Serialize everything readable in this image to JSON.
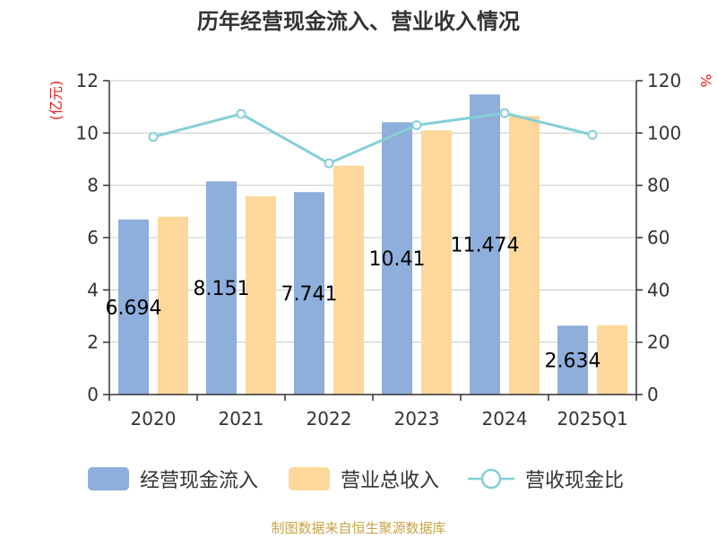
{
  "title": "历年经营现金流入、营业收入情况",
  "source": "制图数据来自恒生聚源数据库",
  "chart_data": {
    "type": "bar",
    "categories": [
      "2020",
      "2021",
      "2022",
      "2023",
      "2024",
      "2025Q1"
    ],
    "left_axis": {
      "label": "(亿元)",
      "ylim": [
        0,
        12
      ],
      "ticks": [
        0,
        2,
        4,
        6,
        8,
        10,
        12
      ]
    },
    "right_axis": {
      "label": "%",
      "ylim": [
        0,
        120
      ],
      "ticks": [
        0,
        20,
        40,
        60,
        80,
        100,
        120
      ]
    },
    "series": [
      {
        "name": "经营现金流入",
        "type": "bar",
        "axis": "left",
        "color": "#8eaedb",
        "values": [
          6.694,
          8.151,
          7.741,
          10.411,
          11.474,
          2.634
        ],
        "labels": [
          "6.694",
          "8.151",
          "7.741",
          "10.41",
          "11.474",
          "2.634"
        ]
      },
      {
        "name": "营业总收入",
        "type": "bar",
        "axis": "left",
        "color": "#fdd89a",
        "values": [
          6.8,
          7.58,
          8.75,
          10.1,
          10.65,
          2.65
        ]
      },
      {
        "name": "营收现金比",
        "type": "line",
        "axis": "right",
        "color": "#84d0d6",
        "values": [
          98.5,
          107.3,
          88.4,
          103.0,
          107.6,
          99.3
        ]
      }
    ],
    "grid": true,
    "legend_position": "bottom"
  }
}
